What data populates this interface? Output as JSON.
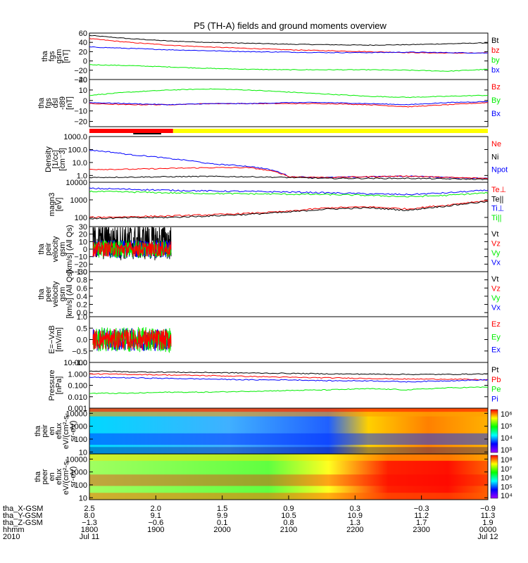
{
  "title": "P5 (TH-A) fields and ground moments overview",
  "colors": {
    "black": "#000000",
    "red": "#ff0000",
    "green": "#00ee00",
    "blue": "#0000ff",
    "yellow": "#ffff00"
  },
  "chart_data": [
    {
      "type": "line",
      "ylabel_lines": [
        "tha",
        "fgs",
        "gsm",
        "[nT]"
      ],
      "ylim": [
        -40,
        60
      ],
      "yticks": [
        "60",
        "40",
        "20",
        "0",
        "−20",
        "−40"
      ],
      "ytick_values": [
        60,
        40,
        20,
        0,
        -20,
        -40
      ],
      "legend": [
        {
          "text": "Bt",
          "color": "#000000"
        },
        {
          "text": "bz",
          "color": "#ff0000"
        },
        {
          "text": "by",
          "color": "#00ee00"
        },
        {
          "text": "bx",
          "color": "#0000ff"
        }
      ],
      "x": [
        0,
        0.1,
        0.2,
        0.3,
        0.4,
        0.5,
        0.6,
        0.7,
        0.8,
        0.9,
        1.0
      ],
      "series": [
        {
          "color": "#000000",
          "values": [
            55,
            48,
            43,
            40,
            38,
            36,
            35,
            34,
            35,
            37,
            39
          ]
        },
        {
          "color": "#ff0000",
          "values": [
            48,
            40,
            34,
            30,
            27,
            24,
            22,
            20,
            18,
            17,
            17
          ]
        },
        {
          "color": "#00ee00",
          "values": [
            -8,
            -10,
            -13,
            -16,
            -18,
            -19,
            -19,
            -19,
            -20,
            -22,
            -18
          ]
        },
        {
          "color": "#0000ff",
          "values": [
            30,
            27,
            24,
            22,
            20,
            19,
            18,
            18,
            19,
            18,
            17
          ]
        }
      ]
    },
    {
      "type": "line",
      "ylabel_lines": [
        "tha",
        "fgs",
        "dsl",
        "-t89",
        "[nT]"
      ],
      "ylim": [
        -25,
        20
      ],
      "yticks": [
        "20",
        "10",
        "0",
        "−10",
        "−20"
      ],
      "ytick_values": [
        20,
        10,
        0,
        -10,
        -20
      ],
      "legend": [
        {
          "text": "Bz",
          "color": "#ff0000"
        },
        {
          "text": "By",
          "color": "#00ee00"
        },
        {
          "text": "Bx",
          "color": "#0000ff"
        }
      ],
      "x": [
        0,
        0.1,
        0.2,
        0.3,
        0.4,
        0.5,
        0.6,
        0.7,
        0.8,
        0.9,
        1.0
      ],
      "series": [
        {
          "color": "#00ee00",
          "values": [
            5,
            8,
            10,
            11,
            10,
            8,
            6,
            4,
            3,
            4,
            5
          ]
        },
        {
          "color": "#ff0000",
          "values": [
            -3,
            -4,
            -4,
            -3,
            -3,
            -3,
            -3,
            -4,
            -6,
            -4,
            -2
          ]
        },
        {
          "color": "#0000ff",
          "values": [
            -2,
            -3,
            -4,
            -3,
            -3,
            -2,
            -2,
            -3,
            -4,
            -2,
            -1
          ]
        }
      ]
    },
    {
      "type": "line",
      "log": true,
      "ylabel_lines": [
        "Density",
        "[1/cc]",
        "[cm⁻3]"
      ],
      "ylim": [
        0.3,
        1000
      ],
      "yticks": [
        "1000.0",
        "100.0",
        "10.0",
        "1.0"
      ],
      "ytick_values": [
        1000,
        100,
        10,
        1
      ],
      "legend": [
        {
          "text": "Ne",
          "color": "#ff0000"
        },
        {
          "text": "Ni",
          "color": "#000000"
        },
        {
          "text": "Npot",
          "color": "#0000ff"
        }
      ],
      "x": [
        0,
        0.1,
        0.2,
        0.3,
        0.4,
        0.5,
        0.6,
        0.7,
        0.8,
        0.9,
        1.0
      ],
      "series": [
        {
          "color": "#0000ff",
          "values": [
            90,
            40,
            20,
            8,
            5,
            0.8,
            0.7,
            0.8,
            0.9,
            0.7,
            0.6
          ]
        },
        {
          "color": "#ff0000",
          "values": [
            3,
            3,
            3.5,
            4,
            4,
            0.8,
            0.7,
            0.8,
            0.9,
            0.7,
            0.6
          ]
        },
        {
          "color": "#000000",
          "values": [
            0.7,
            0.75,
            0.8,
            0.85,
            0.8,
            0.7,
            0.6,
            0.6,
            0.6,
            0.55,
            0.5
          ]
        }
      ]
    },
    {
      "type": "line",
      "log": true,
      "ylabel_lines": [
        "magn3",
        "[eV]"
      ],
      "ylim": [
        30,
        10000
      ],
      "yticks": [
        "10000",
        "1000",
        "100"
      ],
      "ytick_values": [
        10000,
        1000,
        100
      ],
      "legend": [
        {
          "text": "Te⊥",
          "color": "#ff0000"
        },
        {
          "text": "Te||",
          "color": "#000000"
        },
        {
          "text": "Ti⊥",
          "color": "#0000ff"
        },
        {
          "text": "Ti||",
          "color": "#00ee00"
        }
      ],
      "x": [
        0,
        0.1,
        0.2,
        0.3,
        0.4,
        0.5,
        0.6,
        0.7,
        0.8,
        0.9,
        1.0
      ],
      "series": [
        {
          "color": "#0000ff",
          "values": [
            4500,
            4000,
            3500,
            3200,
            3000,
            2800,
            2500,
            2200,
            2000,
            2500,
            3500
          ]
        },
        {
          "color": "#00ee00",
          "values": [
            3000,
            2800,
            2500,
            2300,
            2200,
            2100,
            2000,
            1800,
            1500,
            1800,
            2500
          ]
        },
        {
          "color": "#ff0000",
          "values": [
            100,
            110,
            120,
            140,
            170,
            220,
            350,
            400,
            300,
            500,
            900
          ]
        },
        {
          "color": "#000000",
          "values": [
            85,
            95,
            100,
            120,
            150,
            200,
            300,
            350,
            250,
            450,
            800
          ]
        }
      ]
    },
    {
      "type": "line",
      "ylabel_lines": [
        "tha",
        "peir",
        "velocity",
        "gsm",
        "[km/s] (All Qs)"
      ],
      "ylim": [
        -30,
        30
      ],
      "yticks": [
        "30",
        "20",
        "10",
        "0",
        "−10",
        "−20",
        "−30"
      ],
      "ytick_values": [
        30,
        20,
        10,
        0,
        -10,
        -20,
        -30
      ],
      "legend": [
        {
          "text": "Vt",
          "color": "#000000"
        },
        {
          "text": "Vz",
          "color": "#ff0000"
        },
        {
          "text": "Vy",
          "color": "#00ee00"
        },
        {
          "text": "Vx",
          "color": "#0000ff"
        }
      ],
      "x": [
        0,
        0.1,
        0.2,
        0.3,
        0.4,
        0.5,
        0.6,
        0.7,
        0.8,
        0.9,
        1.0
      ],
      "series": []
    },
    {
      "type": "line",
      "ylabel_lines": [
        "tha",
        "peer",
        "velocity",
        "gsm",
        "[km/s] (All Qs)"
      ],
      "ylim": [
        -0.1,
        1.0
      ],
      "yticks": [
        "1.0",
        "0.8",
        "0.6",
        "0.4",
        "0.2",
        "0.0"
      ],
      "ytick_values": [
        1.0,
        0.8,
        0.6,
        0.4,
        0.2,
        0.0
      ],
      "legend": [
        {
          "text": "Vt",
          "color": "#000000"
        },
        {
          "text": "Vz",
          "color": "#ff0000"
        },
        {
          "text": "Vy",
          "color": "#00ee00"
        },
        {
          "text": "Vx",
          "color": "#0000ff"
        }
      ],
      "x": [],
      "series": []
    },
    {
      "type": "line",
      "ylabel_lines": [
        "E=−VxB",
        "[mV/m]"
      ],
      "ylim": [
        -1.0,
        1.0
      ],
      "yticks": [
        "1.0",
        "0.5",
        "0.0",
        "−0.5",
        "−1.0"
      ],
      "ytick_values": [
        1.0,
        0.5,
        0.0,
        -0.5,
        -1.0
      ],
      "legend": [
        {
          "text": "Ez",
          "color": "#ff0000"
        },
        {
          "text": "Ey",
          "color": "#00ee00"
        },
        {
          "text": "Ex",
          "color": "#0000ff"
        }
      ],
      "x": [],
      "series": []
    },
    {
      "type": "line",
      "log": true,
      "ylabel_lines": [
        "Pressure",
        "[nPa]"
      ],
      "ylim": [
        0.001,
        10
      ],
      "yticks": [
        "10.000",
        "1.000",
        "0.100",
        "0.010",
        "0.001"
      ],
      "ytick_values": [
        10,
        1,
        0.1,
        0.01,
        0.001
      ],
      "legend": [
        {
          "text": "Pt",
          "color": "#000000"
        },
        {
          "text": "Pb",
          "color": "#ff0000"
        },
        {
          "text": "Pe",
          "color": "#00ee00"
        },
        {
          "text": "Pi",
          "color": "#0000ff"
        }
      ],
      "x": [
        0,
        0.1,
        0.2,
        0.3,
        0.4,
        0.5,
        0.6,
        0.7,
        0.8,
        0.9,
        1.0
      ],
      "series": [
        {
          "color": "#000000",
          "values": [
            1.8,
            1.5,
            1.4,
            1.3,
            1.2,
            1.1,
            1.0,
            0.95,
            0.9,
            0.9,
            1.0
          ]
        },
        {
          "color": "#ff0000",
          "values": [
            1.0,
            0.9,
            0.8,
            0.7,
            0.6,
            0.5,
            0.45,
            0.4,
            0.35,
            0.35,
            0.3
          ]
        },
        {
          "color": "#0000ff",
          "values": [
            0.5,
            0.45,
            0.4,
            0.35,
            0.3,
            0.3,
            0.25,
            0.25,
            0.2,
            0.25,
            0.3
          ]
        },
        {
          "color": "#00ee00",
          "values": [
            0.02,
            0.02,
            0.025,
            0.025,
            0.03,
            0.035,
            0.04,
            0.05,
            0.04,
            0.06,
            0.07
          ]
        }
      ]
    },
    {
      "type": "heatmap",
      "log": true,
      "ylabel_lines": [
        "tha",
        "peir",
        "en",
        "eflux",
        "eV/(cm²-s-",
        "sr-eV)"
      ],
      "yticks": [
        "10000",
        "1000",
        "100",
        "10"
      ],
      "ytick_values": [
        10000,
        1000,
        100,
        10
      ],
      "colorbar_ticks": [
        "10⁶",
        "10⁵",
        "10⁴",
        "10³"
      ]
    },
    {
      "type": "heatmap",
      "log": true,
      "ylabel_lines": [
        "tha",
        "peer",
        "en",
        "eflux",
        "eV/(cm²-s-",
        "sr-eV)"
      ],
      "yticks": [
        "10000",
        "1000",
        "100",
        "10"
      ],
      "ytick_values": [
        10000,
        1000,
        100,
        10
      ],
      "colorbar_ticks": [
        "10⁸",
        "10⁷",
        "10⁶",
        "10⁵",
        "10⁴"
      ]
    }
  ],
  "footer": {
    "labels": [
      "tha_X-GSM",
      "tha_Y-GSM",
      "tha_Z-GSM",
      "hhmm",
      "2010"
    ],
    "ticks": [
      {
        "vals": [
          "2.5",
          "8.0",
          "−1.3",
          "1800",
          "Jul 11"
        ]
      },
      {
        "vals": [
          "2.0",
          "9.1",
          "−0.6",
          "1900",
          ""
        ]
      },
      {
        "vals": [
          "1.5",
          "9.9",
          "0.1",
          "2000",
          ""
        ]
      },
      {
        "vals": [
          "0.9",
          "10.5",
          "0.8",
          "2100",
          ""
        ]
      },
      {
        "vals": [
          "0.3",
          "10.9",
          "1.3",
          "2200",
          ""
        ]
      },
      {
        "vals": [
          "−0.3",
          "11.2",
          "1.7",
          "2300",
          ""
        ]
      },
      {
        "vals": [
          "−0.9",
          "11.3",
          "1.9",
          "0000",
          "Jul 12"
        ]
      }
    ]
  }
}
